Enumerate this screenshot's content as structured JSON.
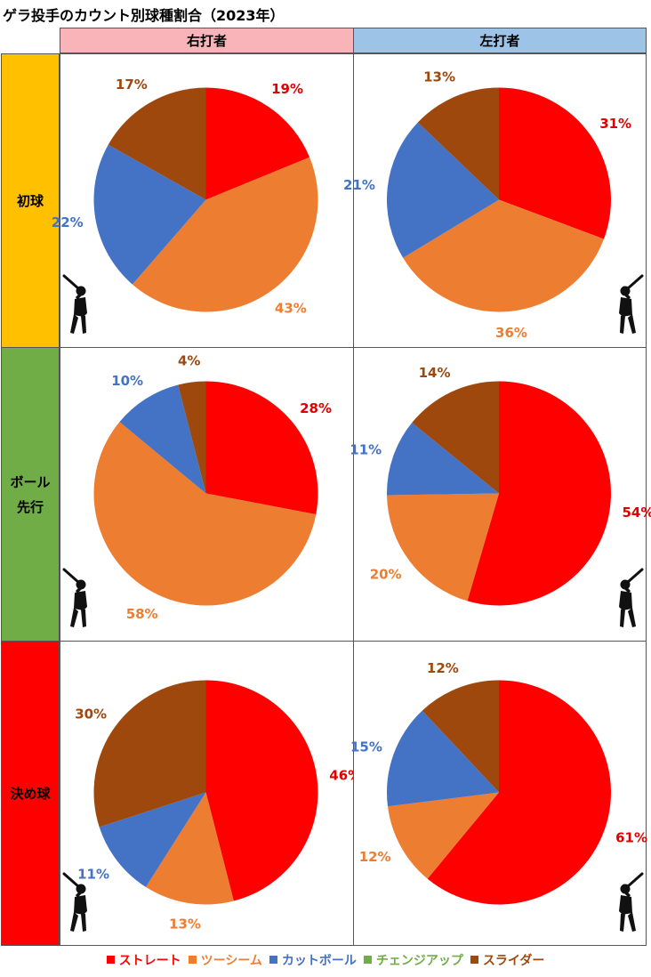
{
  "title": "ゲラ投手のカウント別球種割合（2023年）",
  "columns": [
    "右打者",
    "左打者"
  ],
  "rows": [
    {
      "label_lines": [
        "初球"
      ]
    },
    {
      "label_lines": [
        "ボール",
        "先行"
      ]
    },
    {
      "label_lines": [
        "決め球"
      ]
    }
  ],
  "legend": [
    {
      "name": "ストレート",
      "color": "#ff0000"
    },
    {
      "name": "ツーシーム",
      "color": "#ed7d31"
    },
    {
      "name": "カットボール",
      "color": "#4472c4"
    },
    {
      "name": "チェンジアップ",
      "color": "#70ad47"
    },
    {
      "name": "スライダー",
      "color": "#9e480e"
    }
  ],
  "label_colors": {
    "ストレート": "#e00000",
    "ツーシーム": "#ed7d31",
    "カットボール": "#4472c4",
    "チェンジアップ": "#70ad47",
    "スライダー": "#9e480e"
  },
  "icons": {
    "batter": "batter-silhouette-icon"
  },
  "chart_data": [
    {
      "type": "pie",
      "row": "初球",
      "column": "右打者",
      "categories": [
        "ストレート",
        "ツーシーム",
        "カットボール",
        "スライダー"
      ],
      "values": [
        19,
        43,
        22,
        17
      ],
      "labels": [
        "19%",
        "43%",
        "22%",
        "17%"
      ]
    },
    {
      "type": "pie",
      "row": "初球",
      "column": "左打者",
      "categories": [
        "ストレート",
        "ツーシーム",
        "カットボール",
        "スライダー"
      ],
      "values": [
        31,
        36,
        21,
        13
      ],
      "labels": [
        "31%",
        "36%",
        "21%",
        "13%"
      ]
    },
    {
      "type": "pie",
      "row": "ボール先行",
      "column": "右打者",
      "categories": [
        "ストレート",
        "ツーシーム",
        "カットボール",
        "スライダー"
      ],
      "values": [
        28,
        58,
        10,
        4
      ],
      "labels": [
        "28%",
        "58%",
        "10%",
        "4%"
      ]
    },
    {
      "type": "pie",
      "row": "ボール先行",
      "column": "左打者",
      "categories": [
        "ストレート",
        "ツーシーム",
        "カットボール",
        "スライダー"
      ],
      "values": [
        54,
        20,
        11,
        14
      ],
      "labels": [
        "54%",
        "20%",
        "11%",
        "14%"
      ]
    },
    {
      "type": "pie",
      "row": "決め球",
      "column": "右打者",
      "categories": [
        "ストレート",
        "ツーシーム",
        "カットボール",
        "スライダー"
      ],
      "values": [
        46,
        13,
        11,
        30
      ],
      "labels": [
        "46%",
        "13%",
        "11%",
        "30%"
      ]
    },
    {
      "type": "pie",
      "row": "決め球",
      "column": "左打者",
      "categories": [
        "ストレート",
        "ツーシーム",
        "カットボール",
        "スライダー"
      ],
      "values": [
        61,
        12,
        15,
        12
      ],
      "labels": [
        "61%",
        "12%",
        "15%",
        "12%"
      ]
    }
  ]
}
